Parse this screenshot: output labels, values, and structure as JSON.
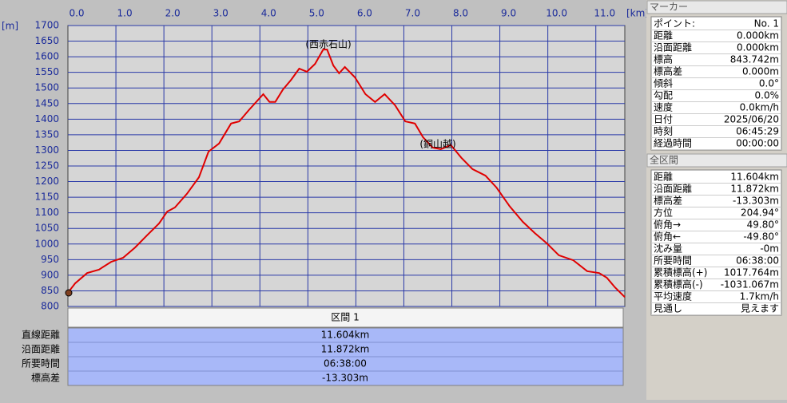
{
  "chart_data": {
    "type": "line",
    "annotations": [
      "(西赤石山)",
      "(銅山越)"
    ],
    "x_unit": "[km]",
    "y_unit": "[m]",
    "x": [
      0,
      0.15,
      0.4,
      0.65,
      0.9,
      1.15,
      1.4,
      1.65,
      1.9,
      2.07,
      2.23,
      2.48,
      2.73,
      2.93,
      3.15,
      3.4,
      3.57,
      3.77,
      4.07,
      4.2,
      4.32,
      4.48,
      4.65,
      4.82,
      4.98,
      5.15,
      5.32,
      5.4,
      5.53,
      5.65,
      5.77,
      5.98,
      6.2,
      6.4,
      6.6,
      6.82,
      7.03,
      7.23,
      7.4,
      7.6,
      7.77,
      7.98,
      8.2,
      8.43,
      8.7,
      8.93,
      9.2,
      9.48,
      9.73,
      9.98,
      10.23,
      10.53,
      10.82,
      11.07,
      11.23,
      11.4,
      11.604
    ],
    "series": [
      {
        "color": "#e00000",
        "values": [
          844,
          874,
          907,
          918,
          943,
          956,
          989,
          1028,
          1066,
          1104,
          1117,
          1161,
          1214,
          1296,
          1322,
          1386,
          1393,
          1429,
          1480,
          1455,
          1455,
          1495,
          1526,
          1562,
          1552,
          1577,
          1623,
          1623,
          1572,
          1547,
          1567,
          1534,
          1480,
          1455,
          1480,
          1444,
          1393,
          1386,
          1342,
          1309,
          1304,
          1317,
          1276,
          1240,
          1219,
          1181,
          1122,
          1071,
          1035,
          1002,
          964,
          948,
          913,
          907,
          892,
          861,
          830
        ]
      }
    ],
    "xlim": [
      0,
      11.604
    ],
    "ylim": [
      800,
      1700
    ],
    "xticks": [
      {
        "value": 0,
        "label": "0.0"
      },
      {
        "value": 1,
        "label": "1.0"
      },
      {
        "value": 2,
        "label": "2.0"
      },
      {
        "value": 3,
        "label": "3.0"
      },
      {
        "value": 4,
        "label": "4.0"
      },
      {
        "value": 5,
        "label": "5.0"
      },
      {
        "value": 6,
        "label": "6.0"
      },
      {
        "value": 7,
        "label": "7.0"
      },
      {
        "value": 8,
        "label": "8.0"
      },
      {
        "value": 9,
        "label": "9.0"
      },
      {
        "value": 10,
        "label": "10.0"
      },
      {
        "value": 11,
        "label": "11.0"
      }
    ],
    "yticks": [
      800,
      850,
      900,
      950,
      1000,
      1050,
      1100,
      1150,
      1200,
      1250,
      1300,
      1350,
      1400,
      1450,
      1500,
      1550,
      1600,
      1650,
      1700
    ],
    "grid": true
  },
  "section_table": {
    "header": "区間 1",
    "rows": [
      [
        "直線距離",
        "11.604km"
      ],
      [
        "沿面距離",
        "11.872km"
      ],
      [
        "所要時間",
        "06:38:00"
      ],
      [
        "標高差",
        "-13.303m"
      ]
    ]
  },
  "marker_panel": {
    "title": "マーカー",
    "rows": [
      [
        "ポイント:",
        "No. 1"
      ],
      [
        "距離",
        "0.000km"
      ],
      [
        "沿面距離",
        "0.000km"
      ],
      [
        "標高",
        "843.742m"
      ],
      [
        "標高差",
        "0.000m"
      ],
      [
        "傾斜",
        "0.0°"
      ],
      [
        "勾配",
        "0.0%"
      ],
      [
        "速度",
        "0.0km/h"
      ],
      [
        "日付",
        "2025/06/20"
      ],
      [
        "時刻",
        "06:45:29"
      ],
      [
        "経過時間",
        "00:00:00"
      ]
    ]
  },
  "total_panel": {
    "title": "全区間",
    "rows": [
      [
        "距離",
        "11.604km"
      ],
      [
        "沿面距離",
        "11.872km"
      ],
      [
        "標高差",
        "-13.303m"
      ],
      [
        "方位",
        "204.94°"
      ],
      [
        "俯角→",
        "49.80°"
      ],
      [
        "俯角←",
        "-49.80°"
      ],
      [
        "沈み量",
        "-0m"
      ],
      [
        "所要時間",
        "06:38:00"
      ],
      [
        "累積標高(+)",
        "1017.764m"
      ],
      [
        "累積標高(-)",
        "-1031.067m"
      ],
      [
        "平均速度",
        "1.7km/h"
      ],
      [
        "見通し",
        "見えます"
      ]
    ]
  }
}
